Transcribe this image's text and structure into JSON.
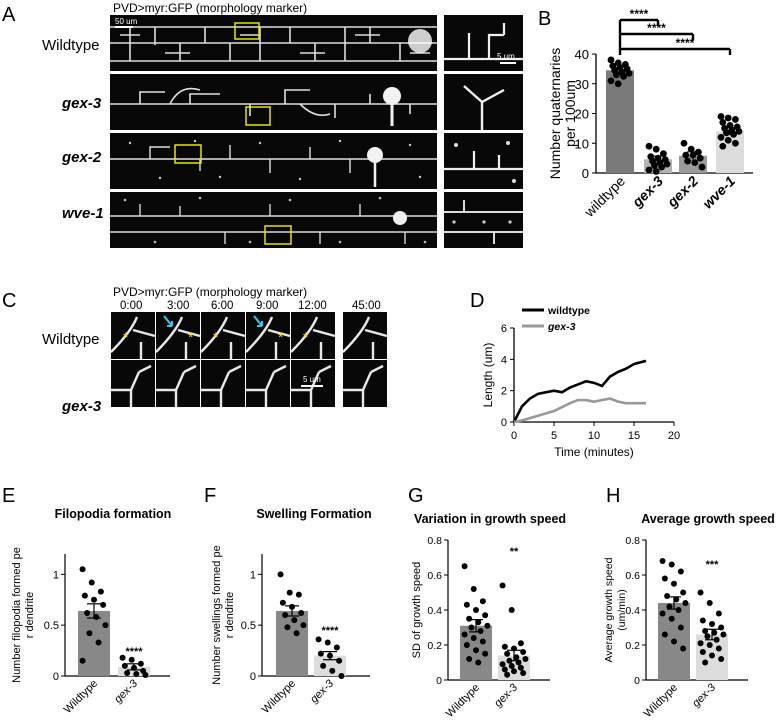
{
  "panels": {
    "A": {
      "letter": "A",
      "header": "PVD>myr:GFP (morphology marker)",
      "rows": [
        "Wildtype",
        "gex-3",
        "gex-2",
        "wve-1"
      ],
      "scale_main": "50 um",
      "scale_inset": "5 um"
    },
    "C": {
      "letter": "C",
      "header": "PVD>myr:GFP (morphology marker)",
      "times": [
        "0:00",
        "3:00",
        "6:00",
        "9:00",
        "12:00",
        "45:00"
      ],
      "rows": [
        "Wildtype",
        "gex-3"
      ],
      "scale": "5 um"
    }
  },
  "chart_data": [
    {
      "panel": "B",
      "type": "bar",
      "title": "",
      "ylabel": "Number quaternaries per 100um",
      "categories": [
        "wildtype",
        "gex-3",
        "gex-2",
        "wve-1"
      ],
      "values": [
        34.5,
        4.6,
        5.8,
        14.0
      ],
      "ylim": [
        0,
        40
      ],
      "yticks": [
        0,
        10,
        20,
        30,
        40
      ],
      "significance": [
        "****",
        "****",
        "****"
      ],
      "colors": [
        "#7a7a7a",
        "#b3b3b3",
        "#9a9a9a",
        "#dcdcdc"
      ]
    },
    {
      "panel": "D",
      "type": "line",
      "title": "",
      "xlabel": "Time (minutes)",
      "ylabel": "Length (um)",
      "xlim": [
        0,
        20
      ],
      "ylim": [
        0,
        6
      ],
      "xticks": [
        0,
        5,
        10,
        15,
        20
      ],
      "yticks": [
        0,
        2,
        4,
        6
      ],
      "series": [
        {
          "name": "wildtype",
          "color": "#000000",
          "x": [
            0,
            1,
            2,
            3,
            4,
            5,
            6,
            7,
            8,
            9,
            10,
            11,
            12,
            13,
            14,
            15,
            16.5
          ],
          "y": [
            0,
            1.0,
            1.5,
            1.8,
            1.9,
            2.0,
            1.9,
            2.2,
            2.4,
            2.6,
            2.5,
            2.3,
            2.9,
            3.2,
            3.4,
            3.7,
            3.9
          ]
        },
        {
          "name": "gex-3",
          "color": "#999999",
          "x": [
            0,
            1,
            3,
            5,
            7,
            8,
            9,
            10,
            11,
            12,
            13,
            14,
            16.5
          ],
          "y": [
            0,
            0.1,
            0.4,
            0.7,
            1.2,
            1.4,
            1.4,
            1.3,
            1.4,
            1.5,
            1.3,
            1.2,
            1.2
          ]
        }
      ]
    },
    {
      "panel": "E",
      "type": "bar",
      "title": "Filopodia formation",
      "ylabel": "Number filopodia formed per dendrite",
      "categories": [
        "Wildtype",
        "gex-3"
      ],
      "values": [
        0.64,
        0.09
      ],
      "ylim": [
        0,
        1.2
      ],
      "yticks": [
        0,
        0.5,
        1.0
      ],
      "significance": "****",
      "points": [
        [
          1.05,
          0.92,
          0.83,
          0.79,
          0.75,
          0.7,
          0.62,
          0.58,
          0.5,
          0.42,
          0.33,
          0.15
        ],
        [
          0.18,
          0.16,
          0.12,
          0.1,
          0.08,
          0.05,
          0.03,
          0.02,
          0.01
        ]
      ]
    },
    {
      "panel": "F",
      "type": "bar",
      "title": "Swelling Formation",
      "ylabel": "Number swellings formed per dendrite",
      "categories": [
        "Wildtype",
        "gex-3"
      ],
      "values": [
        0.64,
        0.2
      ],
      "ylim": [
        0,
        1.2
      ],
      "yticks": [
        0,
        0.5,
        1.0
      ],
      "significance": "****",
      "points": [
        [
          1.0,
          0.82,
          0.8,
          0.72,
          0.68,
          0.62,
          0.6,
          0.55,
          0.5,
          0.48,
          0.42
        ],
        [
          0.36,
          0.33,
          0.28,
          0.22,
          0.2,
          0.15,
          0.1,
          0.05,
          0.0
        ]
      ]
    },
    {
      "panel": "G",
      "type": "bar",
      "title": "Variation in growth speed",
      "ylabel": "SD of growth speed",
      "categories": [
        "Wildtype",
        "gex-3"
      ],
      "values": [
        0.31,
        0.14
      ],
      "ylim": [
        0,
        0.8
      ],
      "yticks": [
        0,
        0.2,
        0.4,
        0.6,
        0.8
      ],
      "significance": "**",
      "points": [
        [
          0.65,
          0.52,
          0.45,
          0.43,
          0.4,
          0.37,
          0.35,
          0.33,
          0.31,
          0.3,
          0.28,
          0.26,
          0.24,
          0.22,
          0.2,
          0.17,
          0.15,
          0.12,
          0.1
        ],
        [
          0.54,
          0.4,
          0.21,
          0.19,
          0.18,
          0.16,
          0.15,
          0.13,
          0.12,
          0.11,
          0.1,
          0.09,
          0.08,
          0.07,
          0.06,
          0.05,
          0.04,
          0.03
        ]
      ]
    },
    {
      "panel": "H",
      "type": "bar",
      "title": "Average growth speed",
      "ylabel": "Average growth speed (um/min)",
      "categories": [
        "Wildtype",
        "gex-3"
      ],
      "values": [
        0.44,
        0.26
      ],
      "ylim": [
        0,
        0.8
      ],
      "yticks": [
        0,
        0.2,
        0.4,
        0.6,
        0.8
      ],
      "significance": "***",
      "points": [
        [
          0.68,
          0.66,
          0.62,
          0.58,
          0.55,
          0.5,
          0.48,
          0.46,
          0.44,
          0.42,
          0.4,
          0.38,
          0.35,
          0.3,
          0.26,
          0.22,
          0.18
        ],
        [
          0.5,
          0.44,
          0.38,
          0.34,
          0.32,
          0.3,
          0.28,
          0.27,
          0.26,
          0.25,
          0.23,
          0.21,
          0.2,
          0.18,
          0.16,
          0.14,
          0.12,
          0.1
        ]
      ]
    }
  ]
}
